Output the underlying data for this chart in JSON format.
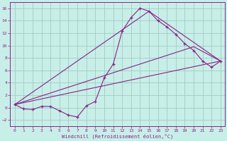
{
  "background_color": "#c8eee8",
  "grid_color": "#a0ccc4",
  "line_color": "#882288",
  "xlabel": "Windchill (Refroidissement éolien,°C)",
  "xlim": [
    -0.5,
    23.5
  ],
  "ylim": [
    -3.0,
    17.0
  ],
  "xticks": [
    0,
    1,
    2,
    3,
    4,
    5,
    6,
    7,
    8,
    9,
    10,
    11,
    12,
    13,
    14,
    15,
    16,
    17,
    18,
    19,
    20,
    21,
    22,
    23
  ],
  "yticks": [
    -2,
    0,
    2,
    4,
    6,
    8,
    10,
    12,
    14,
    16
  ],
  "curve1_x": [
    0,
    1,
    2,
    3,
    4,
    5,
    6,
    7,
    8,
    9,
    10,
    11,
    12,
    13,
    14,
    15,
    16,
    17,
    18,
    19,
    20,
    21,
    22,
    23
  ],
  "curve1_y": [
    0.5,
    -0.2,
    -0.3,
    0.2,
    0.2,
    -0.5,
    -1.2,
    -1.5,
    0.3,
    1.0,
    4.8,
    7.0,
    12.3,
    14.5,
    16.0,
    15.5,
    14.0,
    13.0,
    11.8,
    10.3,
    9.2,
    7.5,
    6.5,
    7.5
  ],
  "line1_x": [
    0,
    23
  ],
  "line1_y": [
    0.5,
    7.5
  ],
  "line2_x": [
    0,
    15,
    23
  ],
  "line2_y": [
    0.5,
    15.5,
    7.5
  ],
  "line3_x": [
    0,
    20,
    23
  ],
  "line3_y": [
    0.5,
    9.8,
    7.5
  ]
}
